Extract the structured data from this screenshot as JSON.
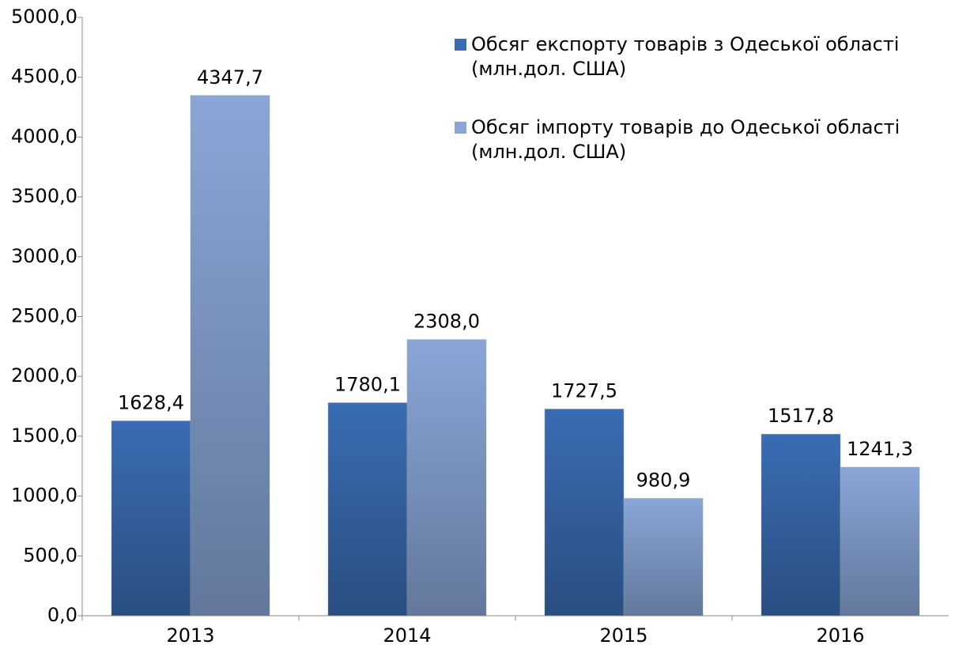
{
  "chart_data": {
    "type": "bar",
    "categories": [
      "2013",
      "2014",
      "2015",
      "2016"
    ],
    "series": [
      {
        "name": "Обсяг експорту товарів з Одеської області (млн.дол. США)",
        "color": "#3a6cb3",
        "values": [
          1628.4,
          1780.1,
          1727.5,
          1517.8
        ],
        "value_labels": [
          "1628,4",
          "1780,1",
          "1727,5",
          "1517,8"
        ]
      },
      {
        "name": "Обсяг імпорту товарів до Одеської області (млн.дол. США)",
        "color": "#89a6d7",
        "values": [
          4347.7,
          2308.0,
          980.9,
          1241.3
        ],
        "value_labels": [
          "4347,7",
          "2308,0",
          "980,9",
          "1241,3"
        ]
      }
    ],
    "ylim": [
      0,
      5000
    ],
    "yticks": [
      {
        "value": 0,
        "label": "0,0"
      },
      {
        "value": 500,
        "label": "500,0"
      },
      {
        "value": 1000,
        "label": "1000,0"
      },
      {
        "value": 1500,
        "label": "1500,0"
      },
      {
        "value": 2000,
        "label": "2000,0"
      },
      {
        "value": 2500,
        "label": "2500,0"
      },
      {
        "value": 3000,
        "label": "3000,0"
      },
      {
        "value": 3500,
        "label": "3500,0"
      },
      {
        "value": 4000,
        "label": "4000,0"
      },
      {
        "value": 4500,
        "label": "4500,0"
      },
      {
        "value": 5000,
        "label": "5000,0"
      }
    ],
    "legend": "upper right"
  }
}
